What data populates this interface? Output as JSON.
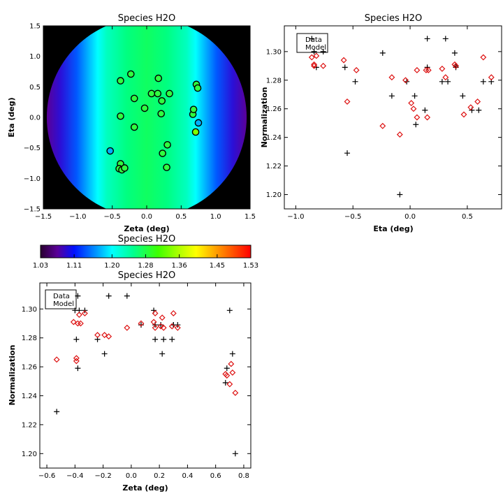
{
  "chart_data": [
    {
      "id": "map",
      "type": "heatmap",
      "title": "Species H2O",
      "xlabel": "Zeta (deg)",
      "ylabel": "Eta (deg)",
      "xlim": [
        -1.5,
        1.5
      ],
      "ylim": [
        -1.5,
        1.5
      ],
      "xticks": [
        -1.5,
        -1.0,
        -0.5,
        0.0,
        0.5,
        1.0,
        1.5
      ],
      "yticks": [
        -1.5,
        -1.0,
        -0.5,
        0.0,
        0.5,
        1.0,
        1.5
      ],
      "xtick_labels": [
        "−1.5",
        "−1.0",
        "−0.5",
        "0.0",
        "0.5",
        "1.0",
        "1.5"
      ],
      "ytick_labels": [
        "−1.5",
        "−1.0",
        "−0.5",
        "0.0",
        "0.5",
        "1.0",
        "1.5"
      ],
      "field_radius_deg": 1.45,
      "color_range": [
        1.03,
        1.53
      ],
      "points": [
        {
          "zeta": -0.38,
          "eta": 0.6,
          "value": 1.28
        },
        {
          "zeta": -0.23,
          "eta": 0.71,
          "value": 1.28
        },
        {
          "zeta": -0.18,
          "eta": 0.31,
          "value": 1.28
        },
        {
          "zeta": -0.38,
          "eta": 0.02,
          "value": 1.28
        },
        {
          "zeta": -0.18,
          "eta": -0.16,
          "value": 1.28
        },
        {
          "zeta": -0.53,
          "eta": -0.55,
          "value": 1.23
        },
        {
          "zeta": -0.38,
          "eta": -0.76,
          "value": 1.28
        },
        {
          "zeta": -0.4,
          "eta": -0.84,
          "value": 1.28
        },
        {
          "zeta": -0.36,
          "eta": -0.86,
          "value": 1.28
        },
        {
          "zeta": -0.32,
          "eta": -0.83,
          "value": 1.28
        },
        {
          "zeta": -0.03,
          "eta": 0.15,
          "value": 1.28
        },
        {
          "zeta": 0.07,
          "eta": 0.39,
          "value": 1.28
        },
        {
          "zeta": 0.16,
          "eta": 0.39,
          "value": 1.28
        },
        {
          "zeta": 0.17,
          "eta": 0.64,
          "value": 1.28
        },
        {
          "zeta": 0.22,
          "eta": 0.27,
          "value": 1.28
        },
        {
          "zeta": 0.21,
          "eta": 0.06,
          "value": 1.28
        },
        {
          "zeta": 0.33,
          "eta": 0.39,
          "value": 1.28
        },
        {
          "zeta": 0.3,
          "eta": -0.45,
          "value": 1.28
        },
        {
          "zeta": 0.23,
          "eta": -0.59,
          "value": 1.28
        },
        {
          "zeta": 0.29,
          "eta": -0.82,
          "value": 1.28
        },
        {
          "zeta": 0.67,
          "eta": 0.05,
          "value": 1.28
        },
        {
          "zeta": 0.68,
          "eta": 0.13,
          "value": 1.28
        },
        {
          "zeta": 0.72,
          "eta": 0.54,
          "value": 1.28
        },
        {
          "zeta": 0.74,
          "eta": 0.48,
          "value": 1.28
        },
        {
          "zeta": 0.71,
          "eta": -0.24,
          "value": 1.33
        },
        {
          "zeta": 0.75,
          "eta": -0.09,
          "value": 1.23
        }
      ]
    },
    {
      "id": "eta",
      "type": "scatter",
      "title": "Species H2O",
      "xlabel": "Eta (deg)",
      "ylabel": "Normalization",
      "xlim": [
        -1.1,
        0.8
      ],
      "ylim": [
        1.19,
        1.318
      ],
      "xticks": [
        -1.0,
        -0.5,
        0.0,
        0.5
      ],
      "yticks": [
        1.2,
        1.22,
        1.24,
        1.26,
        1.28,
        1.3
      ],
      "xtick_labels": [
        "−1.0",
        "−0.5",
        "0.0",
        "0.5"
      ],
      "ytick_labels": [
        "1.20",
        "1.22",
        "1.24",
        "1.26",
        "1.28",
        "1.30"
      ],
      "legend": {
        "position": "top-left",
        "entries": [
          "Data",
          "Model"
        ]
      },
      "series": [
        {
          "name": "Data",
          "marker": "plus",
          "color": "#000000",
          "x": [
            -0.86,
            -0.84,
            -0.82,
            -0.76,
            -0.57,
            -0.55,
            -0.48,
            -0.24,
            -0.16,
            -0.09,
            -0.03,
            0.04,
            0.05,
            0.13,
            0.15,
            0.15,
            0.28,
            0.31,
            0.33,
            0.39,
            0.4,
            0.4,
            0.46,
            0.54,
            0.6,
            0.64,
            0.71
          ],
          "y": [
            1.309,
            1.3,
            1.289,
            1.3,
            1.289,
            1.229,
            1.279,
            1.299,
            1.269,
            1.2,
            1.279,
            1.269,
            1.249,
            1.259,
            1.309,
            1.289,
            1.279,
            1.309,
            1.279,
            1.299,
            1.289,
            1.29,
            1.269,
            1.259,
            1.259,
            1.279,
            1.279
          ]
        },
        {
          "name": "Model",
          "marker": "diamond",
          "color": "#dd1111",
          "x": [
            -0.86,
            -0.84,
            -0.84,
            -0.82,
            -0.76,
            -0.58,
            -0.55,
            -0.47,
            -0.24,
            -0.16,
            -0.09,
            -0.04,
            0.01,
            0.03,
            0.06,
            0.06,
            0.14,
            0.15,
            0.16,
            0.28,
            0.31,
            0.39,
            0.4,
            0.47,
            0.53,
            0.59,
            0.64,
            0.71
          ],
          "y": [
            1.296,
            1.291,
            1.29,
            1.297,
            1.29,
            1.294,
            1.265,
            1.287,
            1.248,
            1.282,
            1.242,
            1.28,
            1.264,
            1.26,
            1.287,
            1.254,
            1.287,
            1.254,
            1.287,
            1.288,
            1.282,
            1.291,
            1.29,
            1.256,
            1.261,
            1.265,
            1.296,
            1.282
          ]
        }
      ]
    },
    {
      "id": "colorbar",
      "type": "colorbar",
      "title": "Species H2O",
      "range": [
        1.03,
        1.53
      ],
      "tick_values": [
        1.03,
        1.11,
        1.2,
        1.28,
        1.36,
        1.45,
        1.53
      ],
      "tick_labels": [
        "1.03",
        "1.11",
        "1.20",
        "1.28",
        "1.36",
        "1.45",
        "1.53"
      ]
    },
    {
      "id": "zeta",
      "type": "scatter",
      "title": "Species H2O",
      "xlabel": "Zeta (deg)",
      "ylabel": "Normalization",
      "xlim": [
        -0.65,
        0.85
      ],
      "ylim": [
        1.19,
        1.318
      ],
      "xticks": [
        -0.6,
        -0.4,
        -0.2,
        0.0,
        0.2,
        0.4,
        0.6,
        0.8
      ],
      "yticks": [
        1.2,
        1.22,
        1.24,
        1.26,
        1.28,
        1.3
      ],
      "xtick_labels": [
        "−0.6",
        "−0.4",
        "−0.2",
        "0.0",
        "0.2",
        "0.4",
        "0.6",
        "0.8"
      ],
      "ytick_labels": [
        "1.20",
        "1.22",
        "1.24",
        "1.26",
        "1.28",
        "1.30"
      ],
      "legend": {
        "position": "top-left",
        "entries": [
          "Data",
          "Model"
        ]
      },
      "series": [
        {
          "name": "Data",
          "marker": "plus",
          "color": "#000000",
          "x": [
            -0.53,
            -0.4,
            -0.39,
            -0.38,
            -0.38,
            -0.37,
            -0.33,
            -0.24,
            -0.19,
            -0.16,
            -0.03,
            0.07,
            0.16,
            0.17,
            0.17,
            0.21,
            0.22,
            0.23,
            0.29,
            0.3,
            0.3,
            0.33,
            0.67,
            0.68,
            0.7,
            0.72,
            0.74
          ],
          "y": [
            1.229,
            1.299,
            1.279,
            1.259,
            1.309,
            1.299,
            1.299,
            1.279,
            1.269,
            1.309,
            1.309,
            1.289,
            1.299,
            1.289,
            1.279,
            1.289,
            1.269,
            1.279,
            1.279,
            1.289,
            1.289,
            1.289,
            1.249,
            1.259,
            1.299,
            1.269,
            1.2
          ]
        },
        {
          "name": "Model",
          "marker": "diamond",
          "color": "#dd1111",
          "x": [
            -0.53,
            -0.41,
            -0.39,
            -0.39,
            -0.38,
            -0.37,
            -0.36,
            -0.33,
            -0.24,
            -0.19,
            -0.16,
            -0.03,
            0.07,
            0.16,
            0.17,
            0.17,
            0.21,
            0.22,
            0.23,
            0.29,
            0.3,
            0.33,
            0.67,
            0.68,
            0.7,
            0.71,
            0.72,
            0.74
          ],
          "y": [
            1.265,
            1.291,
            1.264,
            1.266,
            1.29,
            1.296,
            1.29,
            1.297,
            1.282,
            1.282,
            1.281,
            1.287,
            1.29,
            1.291,
            1.297,
            1.287,
            1.288,
            1.294,
            1.287,
            1.288,
            1.297,
            1.287,
            1.255,
            1.254,
            1.248,
            1.262,
            1.256,
            1.242
          ]
        }
      ]
    }
  ]
}
